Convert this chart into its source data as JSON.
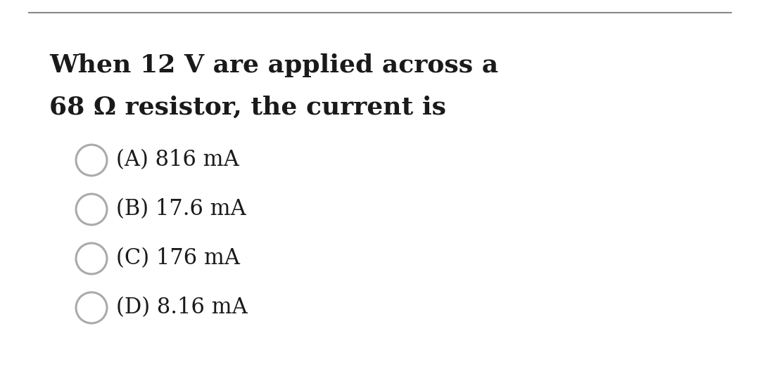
{
  "background_color": "#ffffff",
  "top_line_color": "#888888",
  "question_line1": "When 12 V are applied across a",
  "question_line2": "68 Ω resistor, the current is",
  "question_fontsize": 26,
  "question_fontweight": "bold",
  "options": [
    "(A) 816 mA",
    "(B) 17.6 mA",
    "(C) 176 mA",
    "(D) 8.16 mA"
  ],
  "option_fontsize": 22,
  "circle_color": "#aaaaaa",
  "circle_linewidth": 2.2,
  "text_color": "#1a1a1a"
}
